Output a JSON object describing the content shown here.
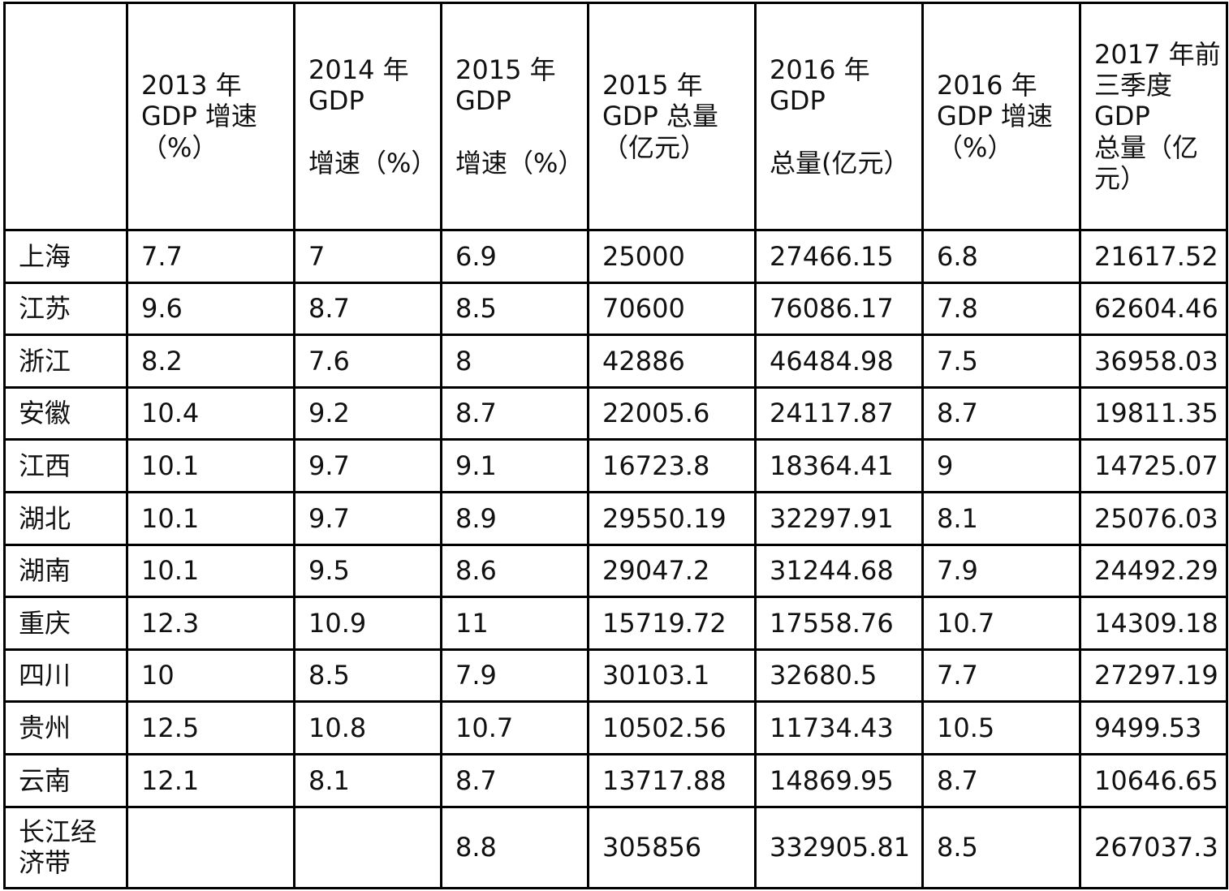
{
  "headers": [
    {
      "lines": [
        ""
      ]
    },
    {
      "lines": [
        "2013 年",
        "GDP 增速",
        "（%）"
      ]
    },
    {
      "lines": [
        "2014 年",
        "GDP",
        "",
        "增速（%）"
      ]
    },
    {
      "lines": [
        "2015 年",
        "GDP",
        "",
        "增速（%）"
      ]
    },
    {
      "lines": [
        "2015 年",
        "GDP 总量",
        "（亿元）"
      ]
    },
    {
      "lines": [
        "2016 年",
        "GDP",
        "",
        "总量(亿元）"
      ]
    },
    {
      "lines": [
        "2016 年",
        "GDP 增速",
        "（%）"
      ]
    },
    {
      "lines": [
        "2017 年前",
        "三季度",
        "GDP",
        "总量（亿",
        "元）"
      ]
    }
  ],
  "rows": [
    [
      "上海",
      "7.7",
      "7",
      "6.9",
      "25000",
      "27466.15",
      "6.8",
      "21617.52"
    ],
    [
      "江苏",
      "9.6",
      "8.7",
      "8.5",
      "70600",
      "76086.17",
      "7.8",
      "62604.46"
    ],
    [
      "浙江",
      "8.2",
      "7.6",
      "8",
      "42886",
      "46484.98",
      "7.5",
      "36958.03"
    ],
    [
      "安徽",
      "10.4",
      "9.2",
      "8.7",
      "22005.6",
      "24117.87",
      "8.7",
      "19811.35"
    ],
    [
      "江西",
      "10.1",
      "9.7",
      "9.1",
      "16723.8",
      "18364.41",
      "9",
      "14725.07"
    ],
    [
      "湖北",
      "10.1",
      "9.7",
      "8.9",
      "29550.19",
      "32297.91",
      "8.1",
      "25076.03"
    ],
    [
      "湖南",
      "10.1",
      "9.5",
      "8.6",
      "29047.2",
      "31244.68",
      "7.9",
      "24492.29"
    ],
    [
      "重庆",
      "12.3",
      "10.9",
      "11",
      "15719.72",
      "17558.76",
      "10.7",
      "14309.18"
    ],
    [
      "四川",
      "10",
      "8.5",
      "7.9",
      "30103.1",
      "32680.5",
      "7.7",
      "27297.19"
    ],
    [
      "贵州",
      "12.5",
      "10.8",
      "10.7",
      "10502.56",
      "11734.43",
      "10.5",
      "9499.53"
    ],
    [
      "云南",
      "12.1",
      "8.1",
      "8.7",
      "13717.88",
      "14869.95",
      "8.7",
      "10646.65"
    ],
    [
      "长江经济带",
      "",
      "",
      "8.8",
      "305856",
      "332905.81",
      "8.5",
      "267037.3"
    ]
  ]
}
